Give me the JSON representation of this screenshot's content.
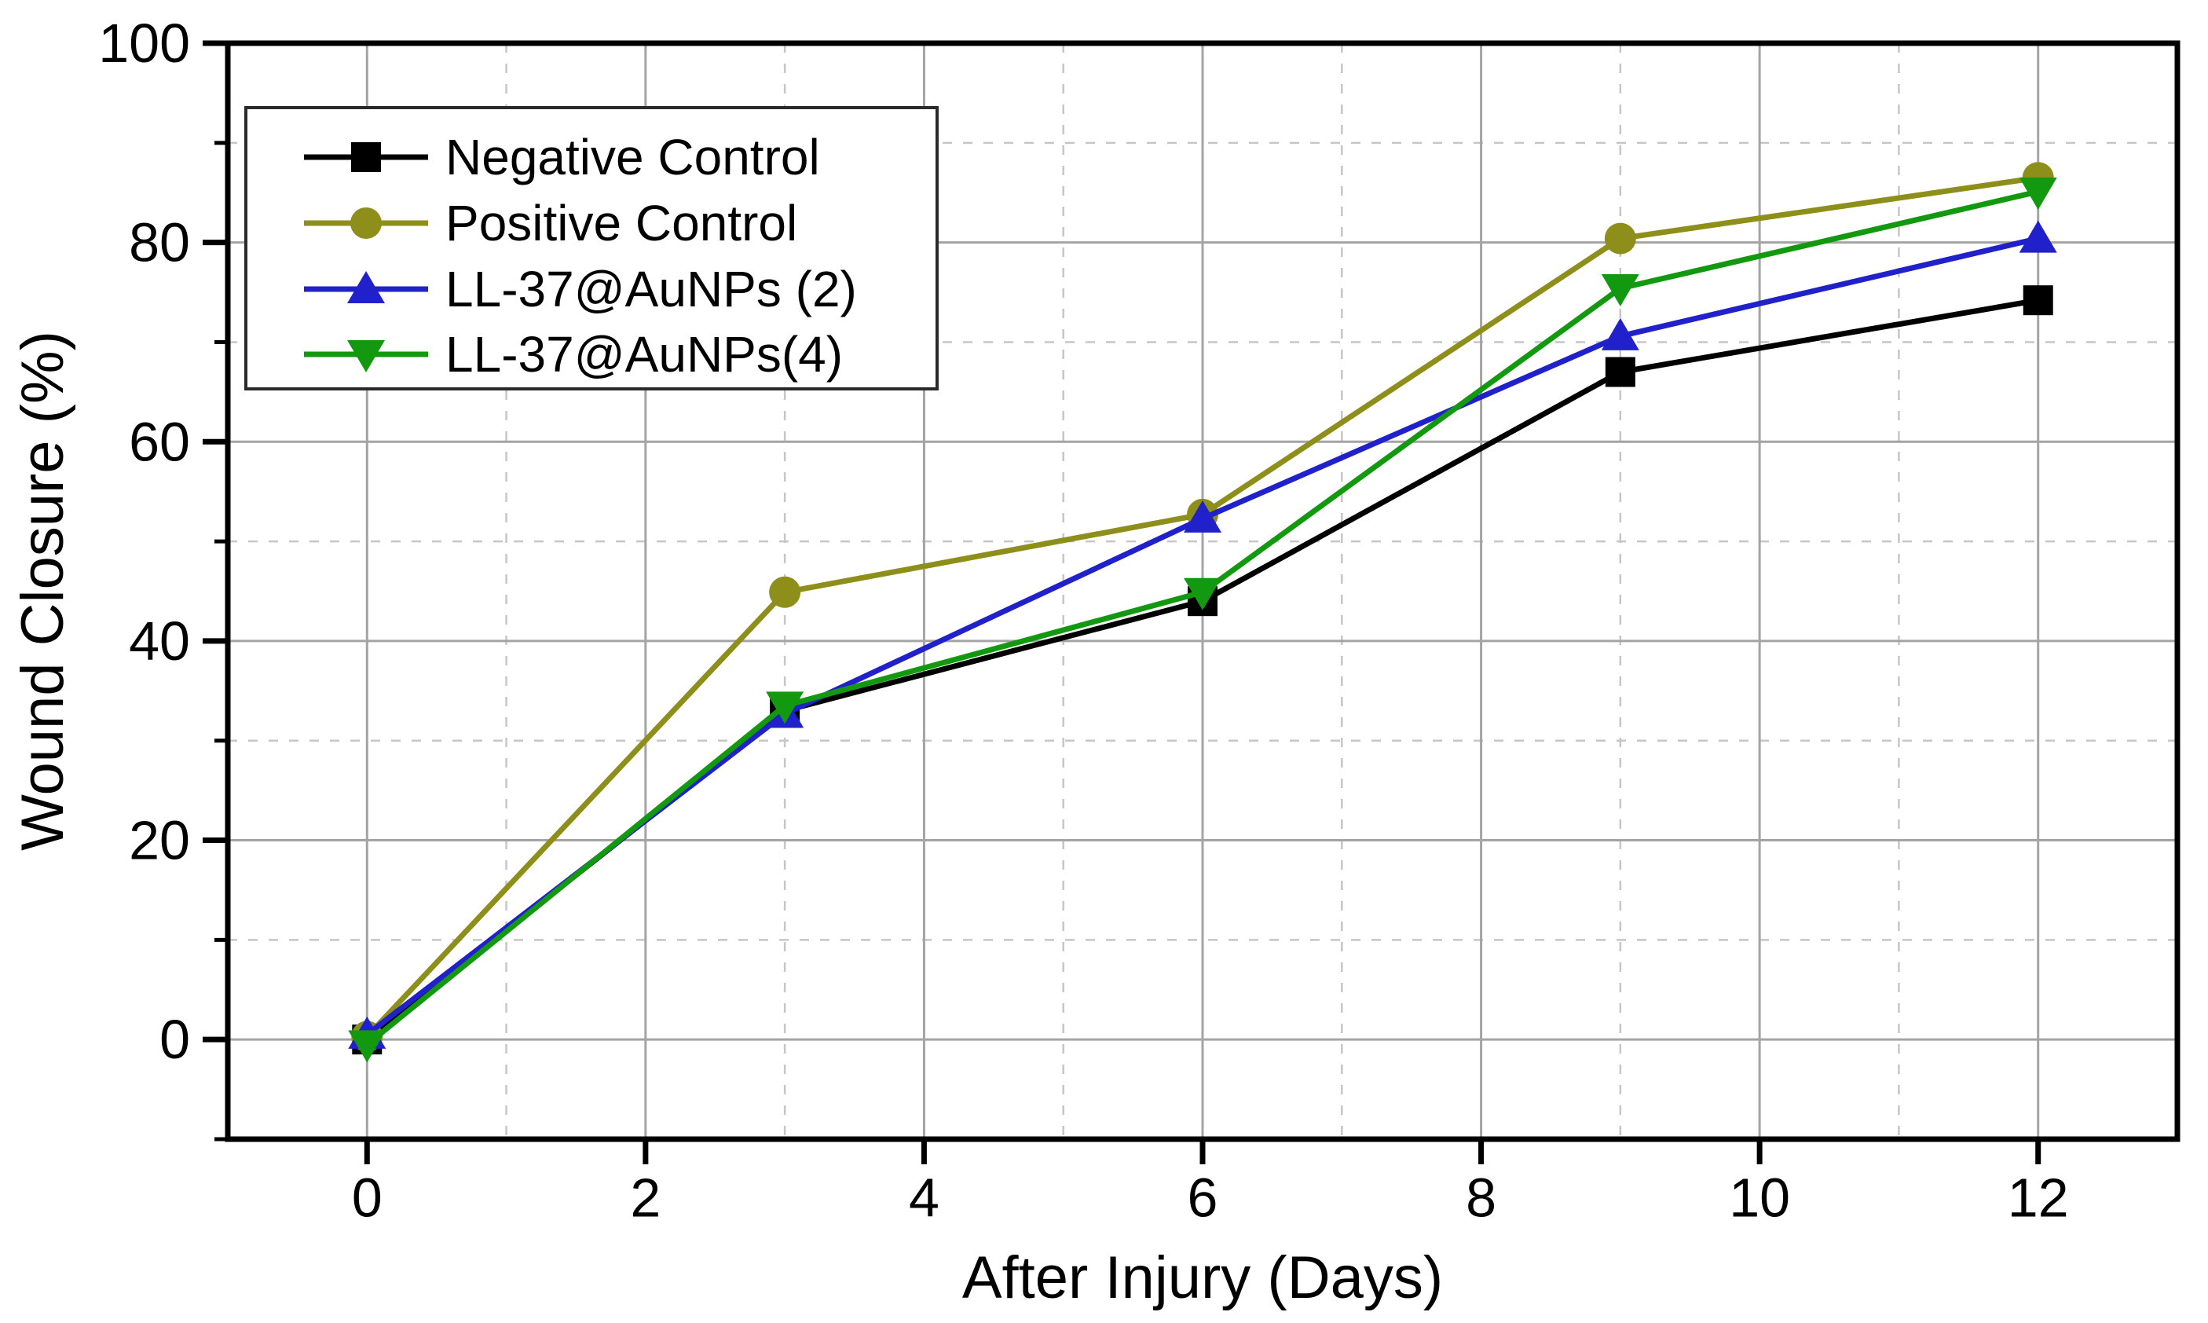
{
  "chart_data": {
    "type": "line",
    "title": "",
    "xlabel": "After Injury (Days)",
    "ylabel": "Wound Closure (%)",
    "x": [
      0,
      3,
      6,
      9,
      12
    ],
    "series": [
      {
        "name": "Negative Control",
        "color": "#000000",
        "marker": "square",
        "values": [
          0,
          33.0,
          44.0,
          67.0,
          74.2
        ]
      },
      {
        "name": "Positive Control",
        "color": "#8e8e1a",
        "marker": "circle",
        "values": [
          0.3,
          44.9,
          52.7,
          80.4,
          86.5
        ]
      },
      {
        "name": "LL-37@AuNPs (2)",
        "color": "#2121cc",
        "marker": "triangle-up",
        "values": [
          0.5,
          32.7,
          52.3,
          70.6,
          80.4
        ]
      },
      {
        "name": "LL-37@AuNPs(4)",
        "color": "#12990f",
        "marker": "triangle-down",
        "values": [
          -0.5,
          33.5,
          44.9,
          75.4,
          85.1
        ]
      }
    ],
    "xlim": [
      -1,
      13
    ],
    "ylim": [
      -10,
      100
    ],
    "x_major_ticks": [
      0,
      2,
      4,
      6,
      8,
      10,
      12
    ],
    "x_major_tick_labels": [
      "0",
      "2",
      "4",
      "6",
      "8",
      "10",
      "12"
    ],
    "x_minor_gridlines": [
      1,
      3,
      5,
      7,
      9,
      11
    ],
    "y_major_ticks": [
      0,
      20,
      40,
      60,
      80,
      100
    ],
    "y_major_tick_labels": [
      "0",
      "20",
      "40",
      "60",
      "80",
      "100"
    ],
    "y_minor_ticks": [
      -10,
      10,
      30,
      50,
      70,
      90
    ],
    "grid": {
      "major_color": "#a4a4a4",
      "minor_color": "#c6c6c6",
      "major_on": true,
      "minor_dashed": true
    },
    "legend": {
      "position": "top-left",
      "entries": [
        "Negative Control",
        "Positive Control",
        "LL-37@AuNPs (2)",
        "LL-37@AuNPs(4)"
      ]
    },
    "frame_color": "#000000",
    "background_color": "#ffffff"
  }
}
